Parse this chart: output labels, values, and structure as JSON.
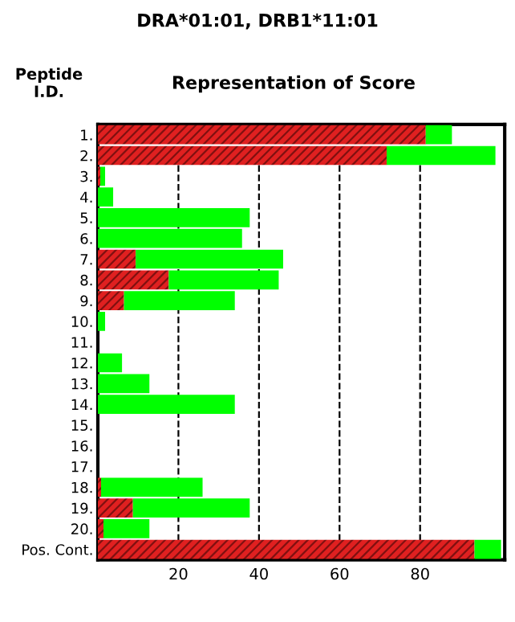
{
  "chart_data": {
    "type": "bar",
    "orientation": "horizontal",
    "stacked": true,
    "title": "DRA*01:01, DRB1*11:01",
    "subtitle": "Representation of Score",
    "ylabel": "Peptide I.D.",
    "categories": [
      "1.",
      "2.",
      "3.",
      "4.",
      "5.",
      "6.",
      "7.",
      "8.",
      "9.",
      "10.",
      "11.",
      "12.",
      "13.",
      "14.",
      "15.",
      "16.",
      "17.",
      "18.",
      "19.",
      "20.",
      "Pos. Cont."
    ],
    "series": [
      {
        "color": "#e02020",
        "values": [
          81.4,
          71.7,
          0.6,
          0,
          0,
          0,
          9.4,
          17.6,
          6.5,
          0,
          0,
          0,
          0,
          0,
          0,
          0,
          0,
          0.8,
          8.7,
          1.4,
          93.5
        ]
      },
      {
        "color": "#00ff00",
        "values": [
          6.5,
          27,
          1.2,
          3.8,
          37.7,
          35.8,
          36.6,
          27.3,
          27.5,
          1.8,
          0,
          6,
          12.8,
          34,
          0,
          0,
          0,
          25.2,
          29,
          11.4,
          6.6
        ]
      }
    ],
    "xlim": [
      0,
      101
    ],
    "xticks": [
      20,
      40,
      60,
      80
    ],
    "grid": "x",
    "line_style": "dashed",
    "legend": false
  }
}
